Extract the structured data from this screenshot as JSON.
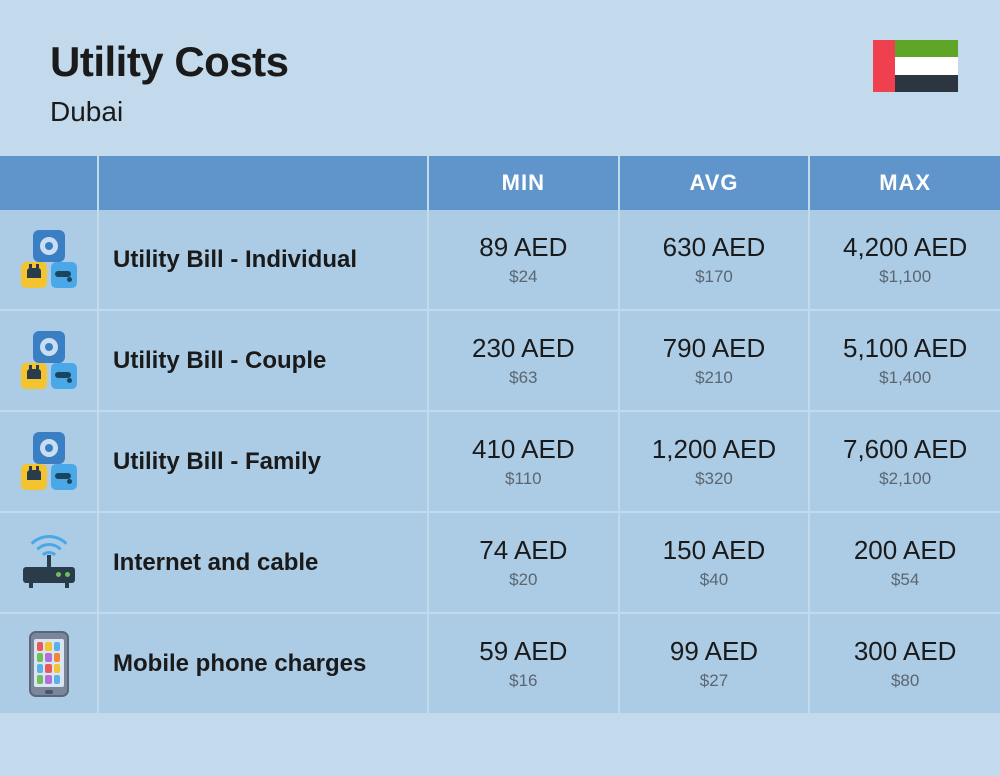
{
  "header": {
    "title": "Utility Costs",
    "subtitle": "Dubai"
  },
  "flag": {
    "red": "#ef4050",
    "green": "#5fa528",
    "white": "#ffffff",
    "black": "#2c3640"
  },
  "table": {
    "type": "table",
    "background_color": "#c3daed",
    "header_bg": "#5f95ca",
    "header_text_color": "#ffffff",
    "row_bg": "#accbe4",
    "border_color": "#c3daed",
    "aed_color": "#1a1a1a",
    "usd_color": "#5a6772",
    "aed_fontsize": 26,
    "usd_fontsize": 17,
    "label_fontsize": 24,
    "columns": [
      "",
      "",
      "MIN",
      "AVG",
      "MAX"
    ],
    "rows": [
      {
        "icon": "utility-group",
        "label": "Utility Bill - Individual",
        "min": {
          "aed": "89 AED",
          "usd": "$24"
        },
        "avg": {
          "aed": "630 AED",
          "usd": "$170"
        },
        "max": {
          "aed": "4,200 AED",
          "usd": "$1,100"
        }
      },
      {
        "icon": "utility-group",
        "label": "Utility Bill - Couple",
        "min": {
          "aed": "230 AED",
          "usd": "$63"
        },
        "avg": {
          "aed": "790 AED",
          "usd": "$210"
        },
        "max": {
          "aed": "5,100 AED",
          "usd": "$1,400"
        }
      },
      {
        "icon": "utility-group",
        "label": "Utility Bill - Family",
        "min": {
          "aed": "410 AED",
          "usd": "$110"
        },
        "avg": {
          "aed": "1,200 AED",
          "usd": "$320"
        },
        "max": {
          "aed": "7,600 AED",
          "usd": "$2,100"
        }
      },
      {
        "icon": "router",
        "label": "Internet and cable",
        "min": {
          "aed": "74 AED",
          "usd": "$20"
        },
        "avg": {
          "aed": "150 AED",
          "usd": "$40"
        },
        "max": {
          "aed": "200 AED",
          "usd": "$54"
        }
      },
      {
        "icon": "phone",
        "label": "Mobile phone charges",
        "min": {
          "aed": "59 AED",
          "usd": "$16"
        },
        "avg": {
          "aed": "99 AED",
          "usd": "$27"
        },
        "max": {
          "aed": "300 AED",
          "usd": "$80"
        }
      }
    ]
  }
}
